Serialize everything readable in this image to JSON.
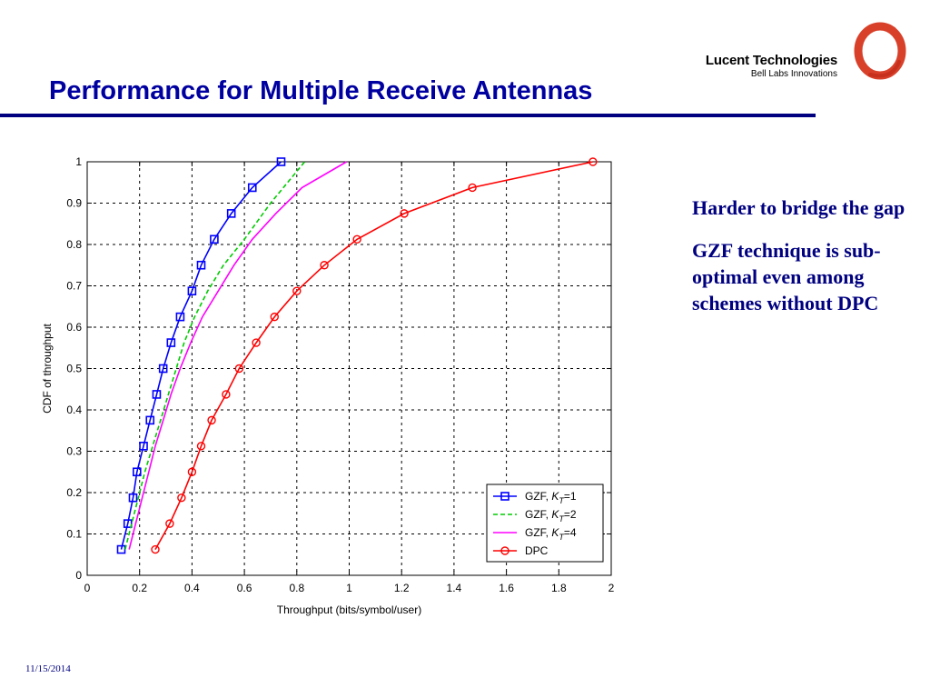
{
  "slide": {
    "title": "Performance for Multiple Receive Antennas",
    "brand_name": "Lucent Technologies",
    "brand_sub": "Bell Labs Innovations",
    "bullets": [
      "Harder to bridge the gap",
      "GZF technique is sub-optimal even among schemes without DPC"
    ],
    "date": "11/15/2014"
  },
  "colors": {
    "title": "#0000a0",
    "rule": "#000080",
    "logo": "#d8402a"
  },
  "chart_data": {
    "type": "line",
    "xlabel": "Throughput (bits/symbol/user)",
    "ylabel": "CDF of throughput",
    "xlim": [
      0,
      2
    ],
    "ylim": [
      0,
      1
    ],
    "xticks": [
      "0",
      "0.2",
      "0.4",
      "0.6",
      "0.8",
      "1",
      "1.2",
      "1.4",
      "1.6",
      "1.8",
      "2"
    ],
    "yticks": [
      "0",
      "0.1",
      "0.2",
      "0.3",
      "0.4",
      "0.5",
      "0.6",
      "0.7",
      "0.8",
      "0.9",
      "1"
    ],
    "grid": true,
    "legend_position": "bottom-right",
    "series": [
      {
        "name": "GZF, K_T=1",
        "label": "GZF,",
        "k_value": "1",
        "color": "#0000ff",
        "dash": "solid",
        "marker": "square",
        "x": [
          0.13,
          0.155,
          0.175,
          0.19,
          0.215,
          0.24,
          0.265,
          0.29,
          0.32,
          0.355,
          0.4,
          0.435,
          0.485,
          0.55,
          0.63,
          0.74
        ],
        "y": [
          0.0625,
          0.125,
          0.1875,
          0.25,
          0.3125,
          0.375,
          0.4375,
          0.5,
          0.5625,
          0.625,
          0.6875,
          0.75,
          0.8125,
          0.875,
          0.9375,
          1.0
        ]
      },
      {
        "name": "GZF, K_T=2",
        "label": "GZF,",
        "k_value": "2",
        "color": "#00cc00",
        "dash": "dashed",
        "marker": "none",
        "x": [
          0.145,
          0.17,
          0.195,
          0.22,
          0.25,
          0.28,
          0.31,
          0.34,
          0.37,
          0.41,
          0.46,
          0.52,
          0.6,
          0.7,
          0.83
        ],
        "y": [
          0.0625,
          0.125,
          0.1875,
          0.25,
          0.3125,
          0.375,
          0.4375,
          0.5,
          0.5625,
          0.625,
          0.6875,
          0.75,
          0.8125,
          0.9,
          1.0
        ]
      },
      {
        "name": "GZF, K_T=4",
        "label": "GZF,",
        "k_value": "4",
        "color": "#ff00ff",
        "dash": "solid",
        "marker": "none",
        "x": [
          0.16,
          0.185,
          0.21,
          0.235,
          0.26,
          0.29,
          0.32,
          0.355,
          0.395,
          0.44,
          0.5,
          0.56,
          0.63,
          0.72,
          0.82,
          0.99
        ],
        "y": [
          0.0625,
          0.125,
          0.1875,
          0.25,
          0.3125,
          0.375,
          0.4375,
          0.5,
          0.5625,
          0.625,
          0.6875,
          0.75,
          0.8125,
          0.875,
          0.9375,
          1.0
        ]
      },
      {
        "name": "DPC",
        "label": "DPC",
        "k_value": "",
        "color": "#ff0000",
        "dash": "solid",
        "marker": "circle",
        "x": [
          0.26,
          0.315,
          0.36,
          0.4,
          0.435,
          0.475,
          0.53,
          0.58,
          0.645,
          0.715,
          0.8,
          0.905,
          1.03,
          1.21,
          1.47,
          1.93
        ],
        "y": [
          0.0625,
          0.125,
          0.1875,
          0.25,
          0.3125,
          0.375,
          0.4375,
          0.5,
          0.5625,
          0.625,
          0.6875,
          0.75,
          0.8125,
          0.875,
          0.9375,
          1.0
        ]
      }
    ]
  }
}
